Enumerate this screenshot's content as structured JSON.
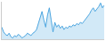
{
  "chart_data": {
    "type": "line",
    "x": [
      0,
      1,
      2,
      3,
      4,
      5,
      6,
      7,
      8,
      9,
      10,
      11,
      12,
      13,
      14,
      15,
      16,
      17,
      18,
      19,
      20,
      21,
      22,
      23,
      24,
      25,
      26,
      27,
      28,
      29,
      30,
      31,
      32,
      33,
      34,
      35,
      36,
      37,
      38,
      39,
      40,
      41,
      42,
      43,
      44,
      45,
      46,
      47,
      48,
      49,
      50,
      51,
      52,
      53,
      54,
      55,
      56
    ],
    "values": [
      72,
      68,
      66,
      65,
      67,
      64,
      63,
      65,
      64,
      66,
      65,
      63,
      64,
      65,
      67,
      66,
      65,
      67,
      68,
      70,
      75,
      80,
      85,
      78,
      72,
      82,
      88,
      78,
      68,
      76,
      72,
      74,
      71,
      73,
      70,
      72,
      71,
      73,
      72,
      74,
      73,
      75,
      74,
      76,
      75,
      77,
      79,
      81,
      83,
      86,
      88,
      85,
      87,
      89,
      92,
      88,
      90
    ],
    "color": "#4da6e0",
    "xlim": [
      0,
      56
    ],
    "ylim": [
      62,
      93
    ],
    "grid": false,
    "tick_labels": false
  }
}
